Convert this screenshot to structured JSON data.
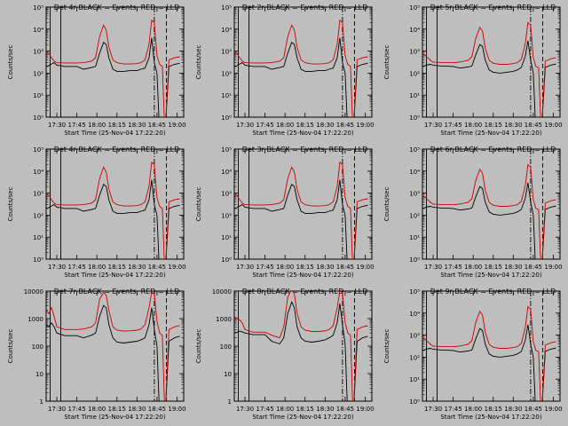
{
  "background": "#bebebe",
  "colors": {
    "events": "#000000",
    "lld": "#cc0000"
  },
  "panels": [
    {
      "title": "Det 4r BLACK = Events, RED = LLD",
      "ylabel": "Counts/sec",
      "xlabel": "Start Time (25-Nov-04 17:22:20)",
      "yticklabels": [
        "10⁰",
        "10¹",
        "10²",
        "10³",
        "10⁴",
        "10⁵"
      ],
      "profile": "a"
    },
    {
      "title": "Det 2r BLACK = Events, RED = LLD",
      "ylabel": "Counts/sec",
      "xlabel": "Start Time (25-Nov-04 17:22:20)",
      "yticklabels": [
        "10⁰",
        "10¹",
        "10²",
        "10³",
        "10⁴",
        "10⁵"
      ],
      "profile": "a"
    },
    {
      "title": "Det 5r BLACK = Events, RED = LLD",
      "ylabel": "Counts/sec",
      "xlabel": "Start Time (25-Nov-04 17:22:20)",
      "yticklabels": [
        "10⁰",
        "10¹",
        "10²",
        "10³",
        "10⁴",
        "10⁵"
      ],
      "profile": "b"
    },
    {
      "title": "Det 4r BLACK = Events, RED = LLD",
      "ylabel": "Counts/sec",
      "xlabel": "Start Time (25-Nov-04 17:22:20)",
      "yticklabels": [
        "10⁰",
        "10¹",
        "10²",
        "10³",
        "10⁴",
        "10⁵"
      ],
      "profile": "a"
    },
    {
      "title": "Det 3r BLACK = Events, RED = LLD",
      "ylabel": "Counts/sec",
      "xlabel": "Start Time (25-Nov-04 17:22:20)",
      "yticklabels": [
        "10⁰",
        "10¹",
        "10²",
        "10³",
        "10⁴",
        "10⁵"
      ],
      "profile": "a"
    },
    {
      "title": "Det 6r BLACK = Events, RED = LLD",
      "ylabel": "Counts/sec",
      "xlabel": "Start Time (25-Nov-04 17:22:20)",
      "yticklabels": [
        "10⁰",
        "10¹",
        "10²",
        "10³",
        "10⁴",
        "10⁵"
      ],
      "profile": "b"
    },
    {
      "title": "Det 7r BLACK = Events, RED = LLD",
      "ylabel": "Counts/sec",
      "xlabel": "Start Time (25-Nov-04 17:22:20)",
      "yticklabels": [
        "1",
        "10",
        "100",
        "1000",
        "10000"
      ],
      "profile": "c"
    },
    {
      "title": "Det 8r BLACK = Events, RED = LLD",
      "ylabel": "Counts/sec",
      "xlabel": "Start Time (25-Nov-04 17:22:20)",
      "yticklabels": [
        "1",
        "10",
        "100",
        "1000",
        "10000"
      ],
      "profile": "d"
    },
    {
      "title": "Det 9r BLACK = Events, RED = LLD",
      "ylabel": "Counts/sec",
      "xlabel": "Start Time (25-Nov-04 17:22:20)",
      "yticklabels": [
        "10⁰",
        "10¹",
        "10²",
        "10³",
        "10⁴",
        "10⁵"
      ],
      "profile": "b"
    }
  ],
  "chart_data": {
    "type": "line",
    "grid": false,
    "yscale": "log",
    "xticklabels": [
      "17:30",
      "17:45",
      "18:00",
      "18:15",
      "18:30",
      "18:45",
      "19:00"
    ],
    "x": [
      "17:22",
      "17:24",
      "17:26",
      "17:28",
      "17:30",
      "17:36",
      "17:45",
      "17:50",
      "17:56",
      "17:59",
      "18:02",
      "18:05",
      "18:07",
      "18:09",
      "18:12",
      "18:15",
      "18:20",
      "18:25",
      "18:30",
      "18:33",
      "18:36",
      "18:39",
      "18:41",
      "18:43",
      "18:45",
      "18:47",
      "18:49",
      "18:51",
      "18:54",
      "18:58",
      "19:02"
    ],
    "profiles": {
      "a": {
        "series": [
          {
            "name": "Events",
            "color": "#000000",
            "values": [
              200,
              220,
              260,
              300,
              230,
              200,
              200,
              150,
              180,
              200,
              800,
              2500,
              2000,
              500,
              150,
              120,
              120,
              130,
              130,
              150,
              170,
              500,
              4000,
              300,
              100,
              0,
              0,
              0,
              200,
              250,
              280
            ]
          },
          {
            "name": "LLD",
            "color": "#cc0000",
            "values": [
              900,
              800,
              500,
              350,
              300,
              290,
              290,
              300,
              350,
              500,
              4500,
              15000,
              9000,
              1500,
              400,
              300,
              260,
              260,
              270,
              300,
              400,
              2000,
              25000,
              20000,
              600,
              250,
              200,
              0,
              400,
              500,
              550
            ]
          }
        ]
      },
      "b": {
        "series": [
          {
            "name": "Events",
            "color": "#000000",
            "values": [
              200,
              220,
              240,
              250,
              230,
              210,
              200,
              170,
              190,
              210,
              700,
              2000,
              1600,
              400,
              140,
              110,
              100,
              110,
              120,
              140,
              180,
              600,
              3000,
              400,
              100,
              0,
              0,
              0,
              180,
              230,
              260
            ]
          },
          {
            "name": "LLD",
            "color": "#cc0000",
            "values": [
              700,
              650,
              500,
              380,
              320,
              300,
              300,
              320,
              380,
              550,
              4000,
              12000,
              8000,
              1400,
              380,
              280,
              250,
              250,
              270,
              300,
              420,
              2200,
              20000,
              15000,
              500,
              200,
              180,
              0,
              350,
              450,
              500
            ]
          }
        ]
      },
      "c": {
        "series": [
          {
            "name": "Events",
            "color": "#000000",
            "values": [
              600,
              500,
              700,
              500,
              300,
              240,
              240,
              200,
              250,
              300,
              1200,
              3000,
              2500,
              600,
              200,
              140,
              130,
              140,
              150,
              170,
              200,
              600,
              2500,
              400,
              100,
              0,
              0,
              0,
              150,
              200,
              230
            ]
          },
          {
            "name": "LLD",
            "color": "#cc0000",
            "values": [
              2000,
              1500,
              2500,
              1200,
              500,
              400,
              400,
              420,
              500,
              700,
              5000,
              9000,
              7000,
              2000,
              500,
              380,
              350,
              360,
              380,
              420,
              600,
              2500,
              9000,
              8000,
              800,
              300,
              250,
              0,
              400,
              500,
              560
            ]
          }
        ]
      },
      "d": {
        "series": [
          {
            "name": "Events",
            "color": "#000000",
            "values": [
              300,
              320,
              350,
              330,
              300,
              260,
              260,
              150,
              120,
              200,
              1500,
              4000,
              2500,
              500,
              200,
              150,
              140,
              150,
              170,
              200,
              250,
              700,
              3500,
              600,
              120,
              0,
              0,
              0,
              150,
              200,
              230
            ]
          },
          {
            "name": "LLD",
            "color": "#cc0000",
            "values": [
              1200,
              1000,
              900,
              700,
              400,
              320,
              320,
              250,
              200,
              500,
              6000,
              12000,
              8000,
              1600,
              500,
              380,
              340,
              340,
              360,
              400,
              550,
              2500,
              10000,
              9000,
              700,
              300,
              250,
              0,
              400,
              500,
              550
            ]
          }
        ]
      }
    }
  }
}
